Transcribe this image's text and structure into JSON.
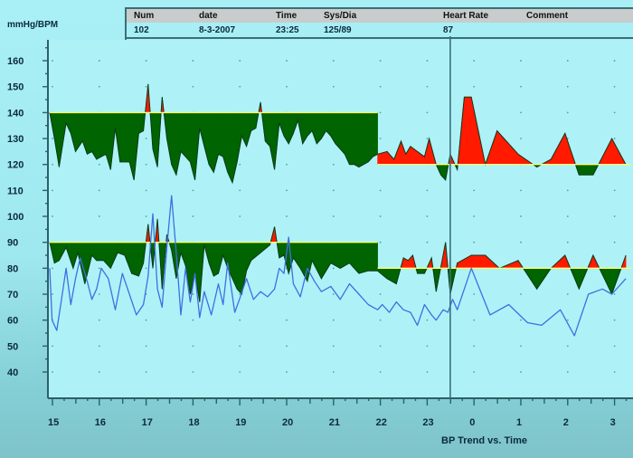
{
  "header": {
    "unit_label": "mmHg/BPM",
    "columns": [
      "Num",
      "date",
      "Time",
      "Sys/Dia",
      "Heart Rate",
      "Comment"
    ],
    "values": [
      "102",
      "8-3-2007",
      "23:25",
      "125/89",
      "87",
      ""
    ]
  },
  "footer": {
    "x_title": "BP Trend vs. Time"
  },
  "colors": {
    "background": "#a9f0f6",
    "below_threshold_fill": "#006400",
    "above_threshold_fill": "#ff1a00",
    "threshold_line": "#ffff66",
    "heart_rate_line": "#3f6fe0",
    "axis": "#2f5f66",
    "cursor": "#3a6f78"
  },
  "chart_data": {
    "type": "area",
    "title": "BP Trend vs. Time",
    "xlabel": "",
    "ylabel": "mmHg/BPM",
    "ylim": [
      40,
      160
    ],
    "yticks": [
      40,
      50,
      60,
      70,
      80,
      90,
      100,
      110,
      120,
      130,
      140,
      150,
      160
    ],
    "xticks": [
      "15",
      "16",
      "17",
      "18",
      "19",
      "20",
      "21",
      "22",
      "23",
      "0",
      "1",
      "2",
      "3"
    ],
    "x_hours_continuous": [
      15,
      16,
      17,
      18,
      19,
      20,
      21,
      22,
      23,
      24,
      25,
      26,
      27
    ],
    "cursor_x": 23.55,
    "grid": "dotted",
    "thresholds": {
      "systolic": [
        {
          "from": 15,
          "to": 22,
          "value": 140
        },
        {
          "from": 22,
          "to": 27.4,
          "value": 120
        }
      ],
      "diastolic": [
        {
          "from": 15,
          "to": 22,
          "value": 90
        },
        {
          "from": 22,
          "to": 27.4,
          "value": 80
        }
      ]
    },
    "series": [
      {
        "name": "Systolic",
        "x": [
          15.0,
          15.1,
          15.2,
          15.35,
          15.45,
          15.55,
          15.7,
          15.8,
          15.9,
          16.0,
          16.1,
          16.2,
          16.3,
          16.4,
          16.5,
          16.6,
          16.7,
          16.8,
          16.9,
          17.0,
          17.1,
          17.2,
          17.3,
          17.4,
          17.5,
          17.6,
          17.7,
          17.8,
          17.9,
          18.0,
          18.1,
          18.2,
          18.3,
          18.4,
          18.5,
          18.6,
          18.7,
          18.8,
          18.9,
          19.0,
          19.1,
          19.2,
          19.3,
          19.4,
          19.5,
          19.6,
          19.7,
          19.8,
          19.9,
          20.0,
          20.1,
          20.2,
          20.3,
          20.4,
          20.5,
          20.6,
          20.7,
          20.8,
          20.9,
          21.0,
          21.1,
          21.2,
          21.3,
          21.4,
          21.5,
          21.6,
          21.7,
          21.8,
          21.9,
          22.0,
          22.2,
          22.35,
          22.5,
          22.6,
          22.7,
          22.85,
          23.0,
          23.1,
          23.25,
          23.35,
          23.45,
          23.55,
          23.7,
          23.85,
          24.0,
          24.3,
          24.55,
          25.0,
          25.4,
          25.7,
          26.0,
          26.3,
          26.6,
          27.0,
          27.3
        ],
        "values": [
          140,
          130,
          119,
          136,
          132,
          125,
          129,
          124,
          125,
          122,
          123,
          124,
          118,
          134,
          121,
          121,
          121,
          114,
          132,
          133,
          151,
          126,
          119,
          146,
          130,
          120,
          116,
          125,
          123,
          121,
          114,
          134,
          127,
          120,
          117,
          124,
          123,
          117,
          113,
          121,
          131,
          127,
          133,
          134,
          144,
          129,
          127,
          118,
          136,
          131,
          128,
          132,
          137,
          128,
          131,
          133,
          128,
          130,
          133,
          131,
          128,
          126,
          124,
          120,
          120,
          119,
          120,
          121,
          123,
          124,
          125,
          122,
          129,
          124,
          127,
          125,
          123,
          130,
          120,
          116,
          114,
          124,
          118,
          146,
          146,
          120,
          133,
          124,
          119,
          122,
          132,
          116,
          116,
          130,
          120
        ],
        "threshold_fill": true
      },
      {
        "name": "Diastolic",
        "x": [
          15.0,
          15.1,
          15.2,
          15.35,
          15.5,
          15.6,
          15.75,
          15.9,
          16.0,
          16.15,
          16.3,
          16.45,
          16.6,
          16.75,
          16.9,
          17.0,
          17.1,
          17.2,
          17.3,
          17.4,
          17.5,
          17.6,
          17.7,
          17.8,
          17.9,
          18.0,
          18.1,
          18.2,
          18.3,
          18.4,
          18.5,
          18.6,
          18.7,
          18.8,
          18.9,
          19.0,
          19.1,
          19.2,
          19.3,
          19.5,
          19.7,
          19.8,
          19.9,
          20.0,
          20.1,
          20.2,
          20.35,
          20.5,
          20.6,
          20.8,
          21.0,
          21.2,
          21.4,
          21.6,
          21.8,
          22.0,
          22.2,
          22.4,
          22.55,
          22.65,
          22.75,
          22.85,
          23.0,
          23.15,
          23.25,
          23.45,
          23.55,
          23.7,
          24.0,
          24.3,
          24.6,
          25.0,
          25.4,
          25.7,
          26.0,
          26.3,
          26.6,
          27.0,
          27.3
        ],
        "values": [
          90,
          82,
          83,
          88,
          80,
          86,
          74,
          85,
          83,
          83,
          80,
          86,
          85,
          78,
          77,
          82,
          97,
          80,
          99,
          72,
          93,
          87,
          76,
          86,
          81,
          70,
          78,
          67,
          89,
          82,
          77,
          78,
          85,
          80,
          76,
          72,
          70,
          79,
          83,
          86,
          89,
          96,
          84,
          85,
          78,
          84,
          80,
          75,
          83,
          76,
          82,
          80,
          82,
          78,
          79,
          79,
          76,
          74,
          84,
          83,
          85,
          78,
          78,
          84,
          71,
          90,
          70,
          82,
          85,
          85,
          80,
          83,
          72,
          80,
          85,
          72,
          85,
          70,
          85
        ],
        "threshold_fill": true
      },
      {
        "name": "Heart Rate",
        "x": [
          15.0,
          15.05,
          15.15,
          15.25,
          15.35,
          15.45,
          15.55,
          15.65,
          15.8,
          15.9,
          16.0,
          16.1,
          16.25,
          16.4,
          16.55,
          16.7,
          16.85,
          17.0,
          17.1,
          17.2,
          17.3,
          17.4,
          17.5,
          17.6,
          17.7,
          17.8,
          17.9,
          18.0,
          18.1,
          18.2,
          18.3,
          18.45,
          18.6,
          18.7,
          18.8,
          18.95,
          19.05,
          19.2,
          19.35,
          19.5,
          19.65,
          19.8,
          19.9,
          20.0,
          20.1,
          20.2,
          20.35,
          20.5,
          20.65,
          20.8,
          21.0,
          21.2,
          21.4,
          21.6,
          21.8,
          22.0,
          22.1,
          22.25,
          22.4,
          22.55,
          22.7,
          22.85,
          23.0,
          23.15,
          23.25,
          23.4,
          23.5,
          23.6,
          23.7,
          24.0,
          24.4,
          24.8,
          25.2,
          25.5,
          25.9,
          26.2,
          26.5,
          26.8,
          27.0,
          27.3
        ],
        "values": [
          80,
          60,
          56,
          68,
          80,
          66,
          76,
          84,
          75,
          68,
          72,
          80,
          76,
          64,
          78,
          70,
          62,
          66,
          77,
          101,
          72,
          65,
          88,
          108,
          86,
          62,
          80,
          67,
          78,
          61,
          71,
          62,
          74,
          66,
          82,
          63,
          68,
          76,
          68,
          71,
          69,
          72,
          80,
          78,
          92,
          74,
          69,
          80,
          75,
          71,
          73,
          68,
          74,
          70,
          66,
          64,
          66,
          63,
          67,
          64,
          63,
          58,
          66,
          62,
          60,
          64,
          63,
          68,
          64,
          80,
          62,
          66,
          59,
          58,
          64,
          54,
          70,
          72,
          70,
          76
        ],
        "threshold_fill": false
      }
    ]
  }
}
